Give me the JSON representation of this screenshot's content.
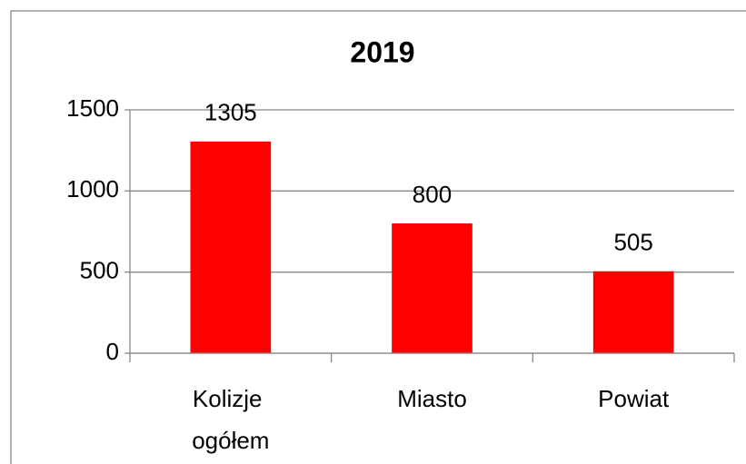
{
  "chart_data": {
    "type": "bar",
    "title": "2019",
    "categories": [
      "Kolizje ogółem",
      "Miasto",
      "Powiat"
    ],
    "values": [
      1305,
      800,
      505
    ],
    "color": "#ff0000",
    "ylim": [
      0,
      1500
    ],
    "yticks": [
      0,
      500,
      1000,
      1500
    ],
    "grid": true
  }
}
